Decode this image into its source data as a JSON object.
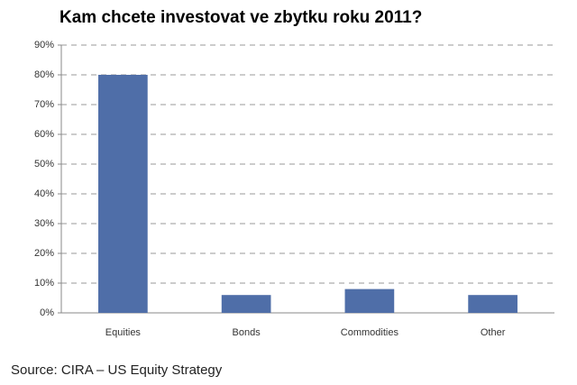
{
  "chart_data": {
    "type": "bar",
    "title": "Kam chcete investovat ve zbytku roku 2011?",
    "categories": [
      "Equities",
      "Bonds",
      "Commodities",
      "Other"
    ],
    "values": [
      80,
      6,
      8,
      6
    ],
    "color": "#4f6ea8",
    "ylim": [
      0,
      90
    ],
    "yticks": [
      {
        "value": 0,
        "label": "0%"
      },
      {
        "value": 10,
        "label": "10%"
      },
      {
        "value": 20,
        "label": "20%"
      },
      {
        "value": 30,
        "label": "30%"
      },
      {
        "value": 40,
        "label": "40%"
      },
      {
        "value": 50,
        "label": "50%"
      },
      {
        "value": 60,
        "label": "60%"
      },
      {
        "value": 70,
        "label": "70%"
      },
      {
        "value": 80,
        "label": "80%"
      },
      {
        "value": 90,
        "label": "90%"
      }
    ],
    "grid": true,
    "source": "Source: CIRA – US Equity Strategy"
  }
}
